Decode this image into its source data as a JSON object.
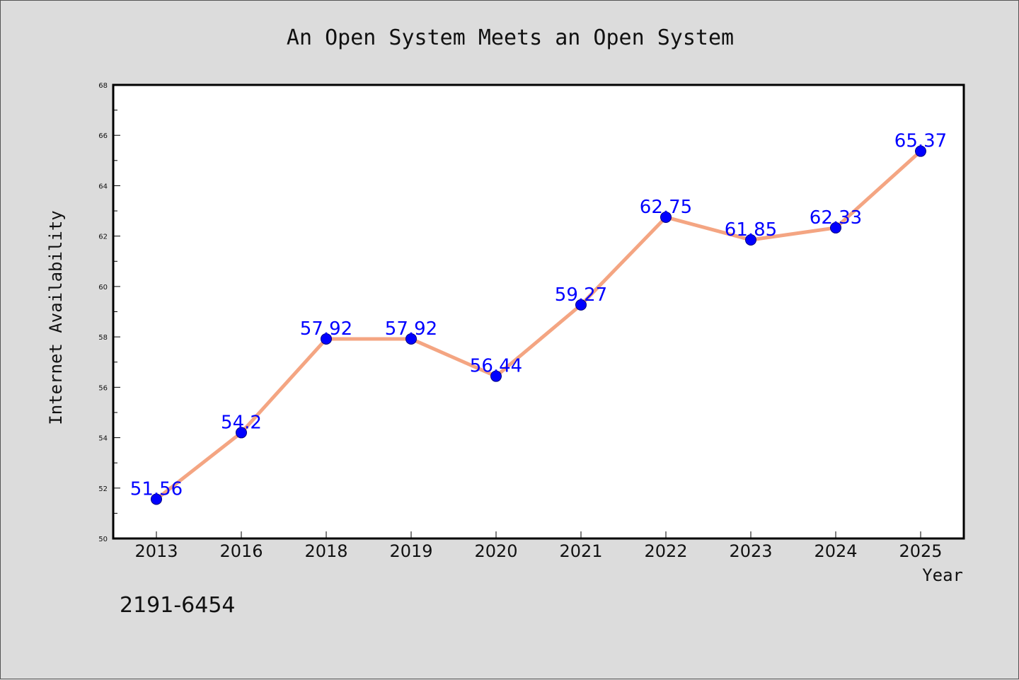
{
  "chart_data": {
    "type": "line",
    "title": "An Open System Meets an Open System",
    "xlabel": "Year",
    "ylabel": "Internet Availability",
    "categories": [
      "2013",
      "2016",
      "2018",
      "2019",
      "2020",
      "2021",
      "2022",
      "2023",
      "2024",
      "2025"
    ],
    "series": [
      {
        "values": [
          51.56,
          54.2,
          57.92,
          57.92,
          56.44,
          59.27,
          62.75,
          61.85,
          62.33,
          65.37
        ],
        "labels": [
          "51.56",
          "54.2",
          "57.92",
          "57.92",
          "56.44",
          "59.27",
          "62.75",
          "61.85",
          "62.33",
          "65.37"
        ]
      }
    ],
    "ylim": [
      50,
      68
    ],
    "yticks": [
      "50",
      "52",
      "54",
      "56",
      "58",
      "60",
      "62",
      "64",
      "66",
      "68"
    ],
    "grid": false,
    "legend": "none",
    "colors": {
      "line": "#f4a582",
      "marker": "#0000ff",
      "data_label": "#0000ff",
      "plot_background": "#ffffff",
      "figure_background": "#dcdcdc"
    }
  },
  "footer": {
    "code": "2191-6454"
  }
}
